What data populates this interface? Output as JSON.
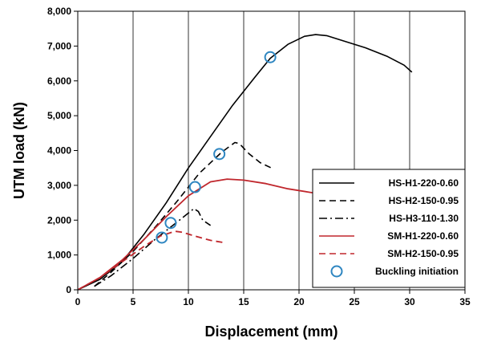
{
  "chart_data": {
    "type": "line",
    "xlabel": "Displacement (mm)",
    "ylabel": "UTM load (kN)",
    "xlim": [
      0,
      35
    ],
    "ylim": [
      0,
      8000
    ],
    "x_ticks": [
      0,
      5,
      10,
      15,
      20,
      25,
      30,
      35
    ],
    "y_ticks": [
      0,
      1000,
      2000,
      3000,
      4000,
      5000,
      6000,
      7000,
      8000
    ],
    "x_tick_labels": [
      "0",
      "5",
      "10",
      "15",
      "20",
      "25",
      "30",
      "35"
    ],
    "y_tick_labels": [
      "0",
      "1,000",
      "2,000",
      "3,000",
      "4,000",
      "5,000",
      "6,000",
      "7,000",
      "8,000"
    ],
    "grid": "vertical",
    "legend_position": "bottom-right",
    "series": [
      {
        "name": "HS-H1-220-0.60",
        "color": "#000000",
        "dash": "solid",
        "x": [
          0,
          2,
          4,
          6,
          8,
          10,
          12,
          14,
          16,
          17.4,
          19,
          20.5,
          21.5,
          22.5,
          24,
          26,
          28,
          29.5,
          30.2
        ],
        "y": [
          0,
          300,
          800,
          1600,
          2500,
          3500,
          4400,
          5300,
          6100,
          6650,
          7050,
          7280,
          7330,
          7300,
          7150,
          6950,
          6700,
          6450,
          6250
        ]
      },
      {
        "name": "HS-H2-150-0.95",
        "color": "#000000",
        "dash": "dashed",
        "x": [
          1.5,
          3,
          5,
          7,
          9,
          11,
          13,
          14.2,
          14.6,
          15.5,
          16.5,
          17.5
        ],
        "y": [
          100,
          500,
          1100,
          1800,
          2550,
          3350,
          3950,
          4230,
          4200,
          3900,
          3650,
          3500
        ]
      },
      {
        "name": "HS-H3-110-1.30",
        "color": "#000000",
        "dash": "dashdot",
        "x": [
          1.5,
          3,
          5,
          7,
          9,
          10.5,
          10.9,
          11.3,
          12
        ],
        "y": [
          100,
          400,
          900,
          1450,
          1950,
          2330,
          2250,
          2000,
          1850
        ]
      },
      {
        "name": "SM-H1-220-0.60",
        "color": "#c0272d",
        "dash": "solid",
        "x": [
          0,
          2,
          4,
          6,
          8,
          10,
          12,
          13.5,
          15,
          17,
          19,
          21,
          23
        ],
        "y": [
          0,
          350,
          850,
          1450,
          2100,
          2700,
          3100,
          3180,
          3150,
          3050,
          2900,
          2800,
          2700
        ]
      },
      {
        "name": "SM-H2-150-0.95",
        "color": "#c0272d",
        "dash": "dashed",
        "x": [
          0,
          2,
          4,
          6,
          7.5,
          8.8,
          9.5,
          10.5,
          12,
          13.3
        ],
        "y": [
          0,
          350,
          800,
          1250,
          1550,
          1680,
          1650,
          1550,
          1420,
          1350
        ]
      }
    ],
    "markers": {
      "name": "Buckling initiation",
      "color": "#2e86c1",
      "points": [
        {
          "x": 17.4,
          "y": 6680
        },
        {
          "x": 12.8,
          "y": 3900
        },
        {
          "x": 10.6,
          "y": 2950
        },
        {
          "x": 8.4,
          "y": 1920
        },
        {
          "x": 7.6,
          "y": 1500
        }
      ]
    }
  }
}
